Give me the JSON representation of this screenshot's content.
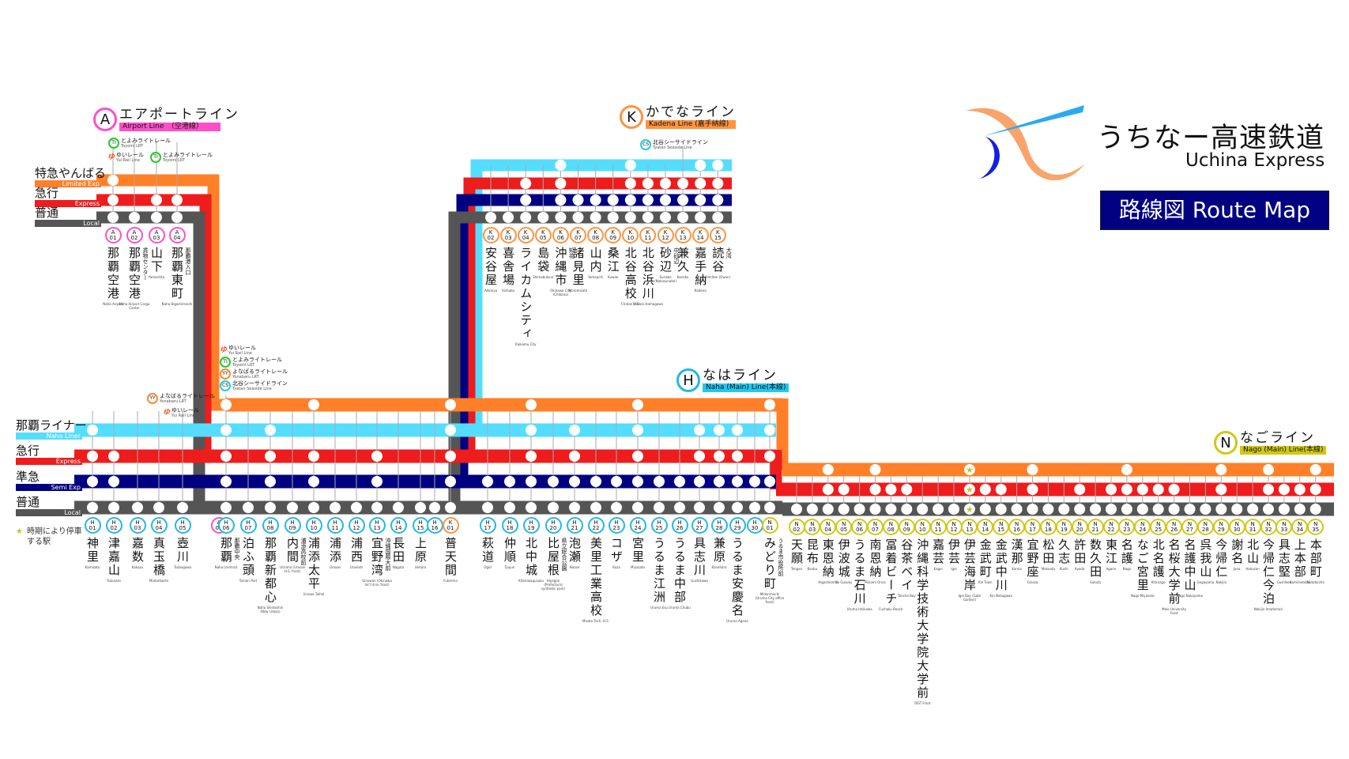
{
  "header": {
    "title_jp": "うちなー高速鉄道",
    "title_en": "Uchina Express",
    "route_map_label": "路線図 Route Map"
  },
  "colors": {
    "limited_exp": "#ff8028",
    "express": "#ee1c1c",
    "semi_exp": "#000080",
    "local": "#555555",
    "naha_liner": "#55ddff",
    "airport_line": "#ff4fc8",
    "kadena_line": "#ff9340",
    "naha_line": "#22b8e8",
    "nago_line": "#d0c814",
    "star": "#c9c12a"
  },
  "services": {
    "limited": {
      "jp": "特急やんばる",
      "en": "Limited Exp"
    },
    "liner": {
      "jp": "那覇ライナー",
      "en": "Naha Liner"
    },
    "express": {
      "jp": "急行",
      "en": "Express"
    },
    "semi": {
      "jp": "準急",
      "en": "Semi Exp"
    },
    "local": {
      "jp": "普通",
      "en": "Local"
    }
  },
  "legend": {
    "star_note": "時期により停車する駅"
  },
  "lines": {
    "airport": {
      "badge": "A",
      "jp": "エアポートライン",
      "en": "Airport Line　（空港線）"
    },
    "kadena": {
      "badge": "K",
      "jp": "かでなライン",
      "en": "Kadena Line (嘉手納線)"
    },
    "naha": {
      "badge": "H",
      "jp": "なはライン",
      "en": "Naha (Main) Line(本線)"
    },
    "nago": {
      "badge": "N",
      "jp": "なごライン",
      "en": "Nago (Main) Line(本線)"
    }
  },
  "transfers": {
    "yui": {
      "jp": "ゆいレール",
      "en": "Yui Rail Line"
    },
    "toyomi": {
      "code": "TI",
      "jp": "とよみライトレール",
      "en": "Toyomi LRT"
    },
    "yonabaru": {
      "code": "YY",
      "jp": "よなばるライトレール",
      "en": "Yonabaru LRT"
    },
    "tyatan": {
      "code": "CS",
      "jp": "北谷シーサイドライン",
      "en": "Tyatan Seaside Line"
    }
  },
  "airport_stations": [
    {
      "line": "A",
      "no": "01",
      "name": "那覇空港",
      "rom": "Naha Airport",
      "stops": {
        "limited": true,
        "express": true,
        "local": true
      }
    },
    {
      "line": "A",
      "no": "02",
      "name": "那覇空港",
      "sub": "貨物センター",
      "rom": "Naha Airport Cargo Center",
      "stops": {
        "limited": false,
        "express": false,
        "local": true
      }
    },
    {
      "line": "A",
      "no": "03",
      "name": "山下",
      "rom": "Yamashita",
      "stops": {
        "limited": false,
        "express": true,
        "local": true
      }
    },
    {
      "line": "A",
      "no": "04",
      "name": "那覇東町",
      "sub": "那覇港入口",
      "rom": "Naha Higashimachi",
      "stops": {
        "limited": false,
        "express": true,
        "local": true
      }
    }
  ],
  "kadena_stations": [
    {
      "line": "K",
      "no": "02",
      "name": "安谷屋",
      "rom": "Adaniya",
      "stops": {
        "liner": false,
        "express": false,
        "semi": false,
        "local": true
      }
    },
    {
      "line": "K",
      "no": "03",
      "name": "喜舎場",
      "rom": "Kishaba",
      "stops": {
        "liner": false,
        "express": false,
        "semi": false,
        "local": true
      }
    },
    {
      "line": "K",
      "no": "04",
      "name": "ライカムシティ",
      "rom": "Raikamu City",
      "stops": {
        "liner": false,
        "express": true,
        "semi": true,
        "local": true
      }
    },
    {
      "line": "K",
      "no": "05",
      "name": "島袋",
      "rom": "Shimabukuro",
      "stops": {
        "liner": false,
        "express": false,
        "semi": false,
        "local": true
      }
    },
    {
      "line": "K",
      "no": "06",
      "name": "沖縄市",
      "sub": "知花",
      "rom": "Okinawa City (Chibana)",
      "stops": {
        "liner": true,
        "express": true,
        "semi": true,
        "local": true
      }
    },
    {
      "line": "K",
      "no": "07",
      "name": "諸見里",
      "rom": "Moromizato",
      "stops": {
        "liner": false,
        "express": false,
        "semi": true,
        "local": true
      }
    },
    {
      "line": "K",
      "no": "08",
      "name": "山内",
      "rom": "Yamauchi",
      "stops": {
        "liner": false,
        "express": false,
        "semi": true,
        "local": true
      }
    },
    {
      "line": "K",
      "no": "09",
      "name": "桑江",
      "rom": "Kuwae",
      "stops": {
        "liner": false,
        "express": false,
        "semi": true,
        "local": true
      }
    },
    {
      "line": "K",
      "no": "10",
      "name": "北谷高校",
      "rom": "Chatan H.S.",
      "stops": {
        "liner": true,
        "express": true,
        "semi": true,
        "local": true
      }
    },
    {
      "line": "K",
      "no": "11",
      "name": "北谷浜川",
      "rom": "Chatan Hamagawa",
      "stops": {
        "liner": false,
        "express": true,
        "semi": true,
        "local": true
      }
    },
    {
      "line": "K",
      "no": "12",
      "name": "砂辺",
      "sub": "中砂辺",
      "rom": "Sunabe (Nakasunabe)",
      "stops": {
        "liner": false,
        "express": true,
        "semi": true,
        "local": true
      }
    },
    {
      "line": "K",
      "no": "13",
      "name": "兼久",
      "rom": "Kaneku",
      "stops": {
        "liner": false,
        "express": true,
        "semi": true,
        "local": true
      }
    },
    {
      "line": "K",
      "no": "14",
      "name": "嘉手納",
      "rom": "Kadena",
      "stops": {
        "liner": true,
        "express": true,
        "semi": true,
        "local": true
      }
    },
    {
      "line": "K",
      "no": "15",
      "name": "読谷",
      "sub": "大湾",
      "rom": "Yomitan (Owan)",
      "stops": {
        "liner": true,
        "express": true,
        "semi": true,
        "local": true
      }
    }
  ],
  "naha_stations": [
    {
      "line": "H",
      "no": "01",
      "name": "神里",
      "rom": "Kamizato",
      "stops": {
        "limited": false,
        "liner": true,
        "express": true,
        "semi": true,
        "local": true
      }
    },
    {
      "line": "H",
      "no": "02",
      "name": "津嘉山",
      "rom": "Tsukazan",
      "stops": {
        "limited": false,
        "liner": false,
        "express": true,
        "semi": true,
        "local": true
      }
    },
    {
      "line": "H",
      "no": "03",
      "name": "嘉数",
      "rom": "Kakazu",
      "stops": {
        "limited": false,
        "liner": false,
        "express": false,
        "semi": false,
        "local": true
      }
    },
    {
      "line": "H",
      "no": "04",
      "name": "真玉橋",
      "rom": "Madanbashi",
      "stops": {
        "limited": false,
        "liner": false,
        "express": false,
        "semi": false,
        "local": true
      }
    },
    {
      "line": "H",
      "no": "05",
      "name": "壺川",
      "rom": "Tsubogawa",
      "stops": {
        "limited": false,
        "liner": false,
        "express": false,
        "semi": false,
        "local": true
      }
    },
    {
      "line": "A",
      "no": "05",
      "name": "",
      "rom": "",
      "stops": {}
    },
    {
      "line": "H",
      "no": "06",
      "name": "那覇",
      "sub": "那覇中央",
      "rom": "Naha (central)",
      "stops": {
        "limited": true,
        "liner": true,
        "express": true,
        "semi": true,
        "local": true
      }
    },
    {
      "line": "H",
      "no": "07",
      "name": "泊ふ頭",
      "rom": "Tomari Port",
      "stops": {
        "limited": false,
        "liner": false,
        "express": false,
        "semi": false,
        "local": true
      }
    },
    {
      "line": "H",
      "no": "08",
      "name": "那覇新都心",
      "rom": "Naha Shintoshin (New Urban)",
      "stops": {
        "limited": false,
        "liner": true,
        "express": true,
        "semi": true,
        "local": true
      }
    },
    {
      "line": "H",
      "no": "09",
      "name": "内間",
      "sub": "浦添高校前",
      "rom": "Uchima (Urasoe H.S. front)",
      "stops": {
        "limited": false,
        "liner": false,
        "express": false,
        "semi": false,
        "local": true
      }
    },
    {
      "line": "H",
      "no": "10",
      "name": "浦添太平",
      "rom": "Urasoe Taihei",
      "stops": {
        "limited": true,
        "liner": false,
        "express": true,
        "semi": true,
        "local": true
      }
    },
    {
      "line": "H",
      "no": "11",
      "name": "浦添",
      "rom": "Urasoe",
      "stops": {
        "limited": false,
        "liner": false,
        "express": false,
        "semi": false,
        "local": true
      }
    },
    {
      "line": "H",
      "no": "12",
      "name": "浦西",
      "rom": "Uranishi",
      "stops": {
        "limited": false,
        "liner": false,
        "express": false,
        "semi": false,
        "local": true
      }
    },
    {
      "line": "H",
      "no": "13",
      "name": "宜野湾",
      "sub": "沖縄国際大前",
      "rom": "Ginowan (Okinawa Int'l Univ. front)",
      "stops": {
        "limited": false,
        "liner": false,
        "express": true,
        "semi": true,
        "local": true
      }
    },
    {
      "line": "H",
      "no": "14",
      "name": "長田",
      "rom": "Nagata",
      "stops": {
        "limited": false,
        "liner": false,
        "express": false,
        "semi": false,
        "local": true
      }
    },
    {
      "line": "H",
      "no": "15",
      "name": "上原",
      "rom": "Uehara",
      "stops": {
        "limited": false,
        "liner": false,
        "express": false,
        "semi": false,
        "local": true
      }
    },
    {
      "line": "H",
      "no": "16",
      "name": "",
      "rom": "",
      "stops": {
        "limited": false,
        "liner": false,
        "express": false,
        "semi": false,
        "local": true
      }
    },
    {
      "line": "K",
      "no": "01",
      "name": "普天間",
      "rom": "Futenma",
      "stops": {
        "limited": true,
        "liner": true,
        "express": true,
        "semi": true,
        "local": true
      }
    },
    {
      "line": "H",
      "no": "17",
      "name": "萩道",
      "rom": "Ogid",
      "stops": {
        "limited": false,
        "liner": false,
        "express": false,
        "semi": true,
        "local": true
      }
    },
    {
      "line": "H",
      "no": "18",
      "name": "仲順",
      "rom": "Tyujun",
      "stops": {
        "limited": false,
        "liner": false,
        "express": false,
        "semi": true,
        "local": true
      }
    },
    {
      "line": "H",
      "no": "19",
      "name": "北中城",
      "rom": "Kitanakagusuku",
      "stops": {
        "limited": true,
        "liner": true,
        "express": true,
        "semi": true,
        "local": true
      }
    },
    {
      "line": "H",
      "no": "20",
      "name": "比屋根",
      "sub": "県立総合公園",
      "rom": "Hiyagon (Prefectural synthetic park)",
      "stops": {
        "limited": false,
        "liner": false,
        "express": false,
        "semi": true,
        "local": true
      }
    },
    {
      "line": "H",
      "no": "21",
      "name": "泡瀬",
      "rom": "Awase",
      "stops": {
        "limited": false,
        "liner": true,
        "express": true,
        "semi": true,
        "local": true
      }
    },
    {
      "line": "H",
      "no": "22",
      "name": "美里工業高校",
      "rom": "Misato Tech. H.S.",
      "stops": {
        "limited": false,
        "liner": false,
        "express": false,
        "semi": true,
        "local": true
      }
    },
    {
      "line": "H",
      "no": "23",
      "name": "コザ",
      "rom": "Koza",
      "stops": {
        "limited": false,
        "liner": false,
        "express": false,
        "semi": true,
        "local": true
      }
    },
    {
      "line": "H",
      "no": "24",
      "name": "宮里",
      "rom": "Miyazato",
      "stops": {
        "limited": true,
        "liner": true,
        "express": true,
        "semi": true,
        "local": true
      }
    },
    {
      "line": "H",
      "no": "25",
      "name": "うるま江洲",
      "rom": "Uruma Esu",
      "stops": {
        "limited": false,
        "liner": false,
        "express": false,
        "semi": true,
        "local": true
      }
    },
    {
      "line": "H",
      "no": "26",
      "name": "うるま中部",
      "rom": "Uruma Chubu",
      "stops": {
        "limited": false,
        "liner": false,
        "express": false,
        "semi": true,
        "local": true
      }
    },
    {
      "line": "H",
      "no": "27",
      "name": "具志川",
      "rom": "Gushikawa",
      "stops": {
        "limited": false,
        "liner": true,
        "express": true,
        "semi": true,
        "local": true
      }
    },
    {
      "line": "H",
      "no": "28",
      "name": "兼原",
      "rom": "Kanehara",
      "stops": {
        "limited": false,
        "liner": true,
        "express": true,
        "semi": true,
        "local": true
      }
    },
    {
      "line": "H",
      "no": "29",
      "name": "うるま安慶名",
      "rom": "Uruma Agena",
      "stops": {
        "limited": false,
        "liner": true,
        "express": true,
        "semi": true,
        "local": true
      }
    },
    {
      "line": "H",
      "no": "30",
      "name": "",
      "rom": "",
      "stops": {
        "limited": false,
        "liner": false,
        "express": false,
        "semi": true,
        "local": true
      }
    },
    {
      "line": "N",
      "no": "01",
      "name": "みどり町",
      "sub": "うるま市役所前",
      "rom": "Midorimachi (Uruma City office front)",
      "stops": {
        "limited": true,
        "liner": true,
        "express": true,
        "semi": true,
        "local": true
      }
    }
  ],
  "nago_stations": [
    {
      "no": "02",
      "name": "天願",
      "rom": "Tengan",
      "stops": {
        "limited": false,
        "express": false,
        "local": true
      }
    },
    {
      "no": "03",
      "name": "昆布",
      "rom": "Konbu",
      "stops": {
        "limited": false,
        "express": false,
        "local": true
      }
    },
    {
      "no": "04",
      "name": "東恩納",
      "rom": "Higashionna",
      "stops": {
        "limited": true,
        "express": true,
        "local": true
      }
    },
    {
      "no": "05",
      "name": "伊波城",
      "rom": "Ifa Gusuku",
      "stops": {
        "limited": false,
        "express": true,
        "local": true
      }
    },
    {
      "no": "06",
      "name": "うるま石川",
      "rom": "Uruma Ishikawa",
      "stops": {
        "limited": false,
        "express": false,
        "local": true
      }
    },
    {
      "no": "07",
      "name": "南恩納",
      "rom": "Minami Onna",
      "stops": {
        "limited": true,
        "express": true,
        "local": true
      }
    },
    {
      "no": "08",
      "name": "冨着ビーチ",
      "rom": "Fuchaku Beach",
      "stops": {
        "limited": false,
        "express": true,
        "local": true
      }
    },
    {
      "no": "09",
      "name": "谷茶ベイ",
      "rom": "Tancha Bay",
      "stops": {
        "limited": false,
        "express": true,
        "local": true
      }
    },
    {
      "no": "10",
      "name": "沖縄科学技術大学院大学前",
      "rom": "OIST Front",
      "stops": {
        "limited": false,
        "express": false,
        "local": true
      }
    },
    {
      "no": "11",
      "name": "嘉芸",
      "rom": "Kagei",
      "stops": {
        "limited": false,
        "express": false,
        "local": true
      }
    },
    {
      "no": "12",
      "name": "伊芸",
      "rom": "Igei",
      "stops": {
        "limited": false,
        "express": false,
        "local": true
      }
    },
    {
      "no": "13",
      "name": "伊芸海岸",
      "rom": "Igei Bay (Gate Garden)",
      "star": true,
      "stops": {
        "limited": true,
        "express": true,
        "local": true
      }
    },
    {
      "no": "14",
      "name": "金武町",
      "rom": "Kin Town",
      "stops": {
        "limited": false,
        "express": true,
        "local": true
      }
    },
    {
      "no": "15",
      "name": "金武中川",
      "rom": "Kin Nakagawa",
      "stops": {
        "limited": false,
        "express": true,
        "local": true
      }
    },
    {
      "no": "16",
      "name": "漢那",
      "rom": "Kanna",
      "stops": {
        "limited": false,
        "express": false,
        "local": true
      }
    },
    {
      "no": "17",
      "name": "宜野座",
      "rom": "Ginoza",
      "stops": {
        "limited": true,
        "express": true,
        "local": true
      }
    },
    {
      "no": "18",
      "name": "松田",
      "rom": "Matsuda",
      "stops": {
        "limited": false,
        "express": false,
        "local": true
      }
    },
    {
      "no": "19",
      "name": "久志",
      "rom": "Kushi",
      "stops": {
        "limited": false,
        "express": false,
        "local": true
      }
    },
    {
      "no": "20",
      "name": "許田",
      "rom": "Kyoda",
      "stops": {
        "limited": false,
        "express": true,
        "local": true
      }
    },
    {
      "no": "21",
      "name": "数久田",
      "rom": "Sukuta",
      "stops": {
        "limited": false,
        "express": false,
        "local": true
      }
    },
    {
      "no": "22",
      "name": "東江",
      "rom": "Agarie",
      "stops": {
        "limited": false,
        "express": true,
        "local": true
      }
    },
    {
      "no": "23",
      "name": "名護",
      "rom": "Nago",
      "stops": {
        "limited": true,
        "express": true,
        "local": true
      }
    },
    {
      "no": "24",
      "name": "なご宮里",
      "rom": "Nago Miyazato",
      "stops": {
        "limited": false,
        "express": true,
        "local": true
      }
    },
    {
      "no": "25",
      "name": "北名護",
      "rom": "Kitanago",
      "stops": {
        "limited": false,
        "express": true,
        "local": true
      }
    },
    {
      "no": "26",
      "name": "名桜大学前",
      "rom": "Meio University Front",
      "stops": {
        "limited": false,
        "express": true,
        "local": true
      }
    },
    {
      "no": "27",
      "name": "名護中山",
      "rom": "Nago Nakayama",
      "stops": {
        "limited": false,
        "express": false,
        "local": true
      }
    },
    {
      "no": "28",
      "name": "呉我山",
      "rom": "Gogayama",
      "stops": {
        "limited": false,
        "express": false,
        "local": true
      }
    },
    {
      "no": "29",
      "name": "今帰仁",
      "rom": "Nakijin",
      "stops": {
        "limited": true,
        "express": true,
        "local": true
      }
    },
    {
      "no": "30",
      "name": "謝名",
      "rom": "Jana",
      "stops": {
        "limited": false,
        "express": false,
        "local": true
      }
    },
    {
      "no": "31",
      "name": "北山",
      "rom": "Hokuzan",
      "stops": {
        "limited": false,
        "express": false,
        "local": true
      }
    },
    {
      "no": "32",
      "name": "今帰仁今泊",
      "rom": "Nakijin Imadomari",
      "stops": {
        "limited": true,
        "express": true,
        "local": true
      }
    },
    {
      "no": "33",
      "name": "具志堅",
      "rom": "Gushiken",
      "stops": {
        "limited": false,
        "express": true,
        "local": true
      }
    },
    {
      "no": "34",
      "name": "上本部",
      "rom": "Kamimotobu",
      "stops": {
        "limited": false,
        "express": true,
        "local": true
      }
    },
    {
      "no": "35",
      "name": "本部町",
      "rom": "Motobucho",
      "stops": {
        "limited": true,
        "express": true,
        "local": true
      }
    }
  ]
}
